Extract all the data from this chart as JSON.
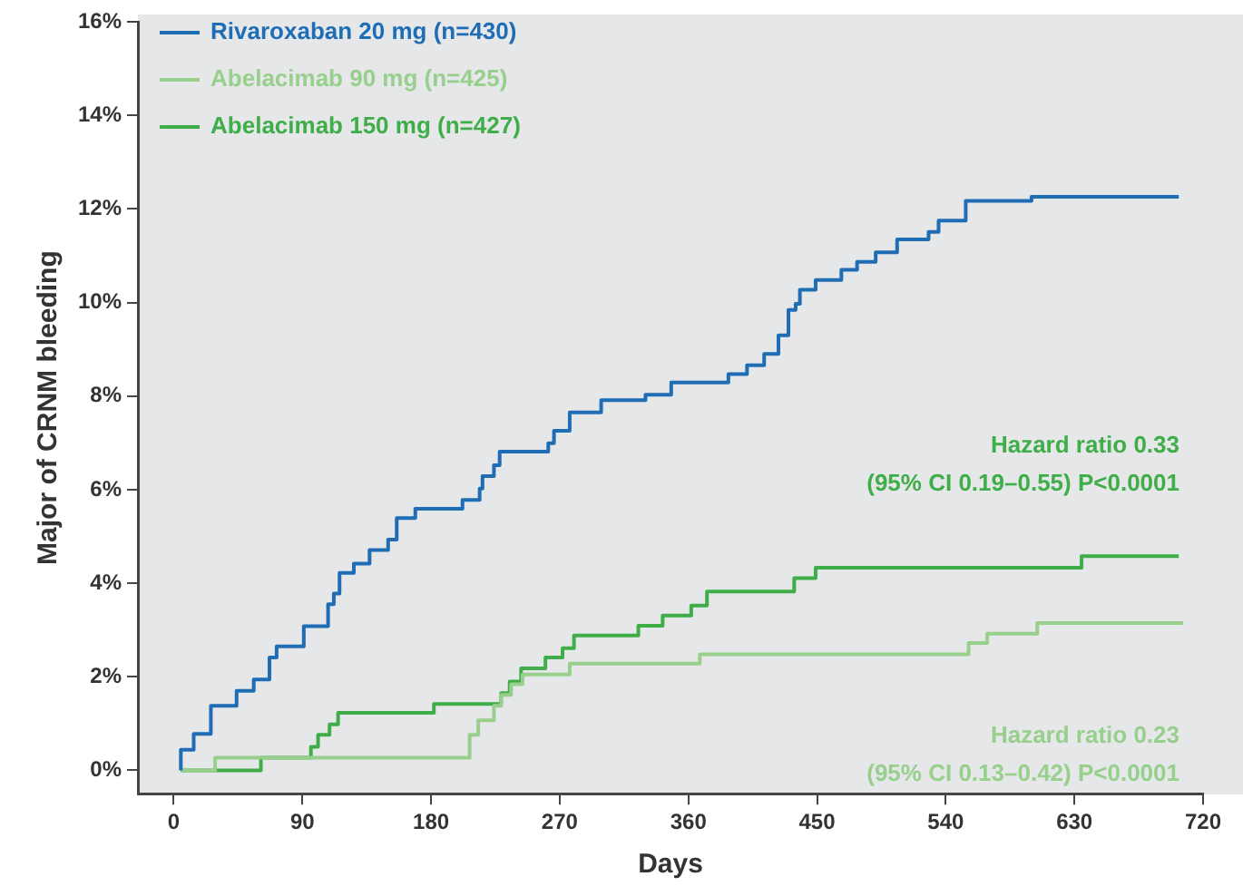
{
  "chart_data": {
    "type": "step",
    "xlabel": "Days",
    "ylabel": "Major of CRNM bleeding",
    "xlim": [
      -25,
      720
    ],
    "xticks": [
      0,
      90,
      180,
      270,
      360,
      450,
      540,
      630,
      720
    ],
    "ylim": [
      -0.5,
      16
    ],
    "yticks": [
      {
        "value": 0,
        "label": "0%"
      },
      {
        "value": 2,
        "label": "2%"
      },
      {
        "value": 4,
        "label": "4%"
      },
      {
        "value": 6,
        "label": "6%"
      },
      {
        "value": 8,
        "label": "8%"
      },
      {
        "value": 10,
        "label": "10%"
      },
      {
        "value": 12,
        "label": "12%"
      },
      {
        "value": 14,
        "label": "14%"
      },
      {
        "value": 16,
        "label": "16%"
      }
    ],
    "grid": false,
    "legend": "top left",
    "marker": "none",
    "line_style": "solid",
    "series": [
      {
        "name": "Rivaroxaban 20 mg (n=430)",
        "color": "#1f6db5",
        "x": [
          5,
          5,
          14,
          26,
          44,
          56,
          67,
          72,
          91,
          108,
          112,
          116,
          126,
          137,
          150,
          156,
          169,
          202,
          214,
          216,
          224,
          228,
          262,
          266,
          277,
          299,
          330,
          348,
          388,
          401,
          413,
          423,
          430,
          435,
          438,
          449,
          467,
          478,
          491,
          506,
          528,
          535,
          554,
          600,
          703
        ],
        "values": [
          0,
          0.44,
          0.78,
          1.38,
          1.7,
          1.94,
          2.41,
          2.65,
          3.08,
          3.55,
          3.78,
          4.22,
          4.42,
          4.71,
          4.93,
          5.39,
          5.59,
          5.78,
          6.02,
          6.29,
          6.52,
          6.81,
          6.99,
          7.26,
          7.65,
          7.91,
          8.03,
          8.29,
          8.47,
          8.66,
          8.9,
          9.3,
          9.84,
          9.97,
          10.27,
          10.48,
          10.7,
          10.87,
          11.07,
          11.35,
          11.51,
          11.75,
          12.17,
          12.26,
          12.26
        ]
      },
      {
        "name": "Abelacimab 90 mg (n=425)",
        "color": "#98cf8c",
        "x": [
          5,
          29,
          207,
          213,
          224,
          229,
          236,
          244,
          277,
          368,
          556,
          569,
          604,
          706
        ],
        "values": [
          0,
          0.27,
          0.76,
          1.07,
          1.38,
          1.61,
          1.84,
          2.05,
          2.28,
          2.48,
          2.72,
          2.92,
          3.15,
          3.15
        ]
      },
      {
        "name": "Abelacimab 150 mg (n=427)",
        "color": "#3fae49",
        "x": [
          5,
          61,
          96,
          101,
          109,
          115,
          182,
          229,
          235,
          243,
          260,
          272,
          280,
          325,
          342,
          362,
          373,
          434,
          449,
          635,
          703
        ],
        "values": [
          0,
          0.27,
          0.5,
          0.76,
          0.98,
          1.23,
          1.42,
          1.65,
          1.9,
          2.18,
          2.41,
          2.61,
          2.88,
          3.09,
          3.31,
          3.52,
          3.82,
          4.11,
          4.33,
          4.58,
          4.58
        ]
      }
    ],
    "annotations": [
      "Hazard ratio 0.33",
      "(95% CI 0.19–0.55) P<0.0001",
      "Hazard ratio 0.23",
      "(95% CI 0.13–0.42) P<0.0001"
    ]
  }
}
